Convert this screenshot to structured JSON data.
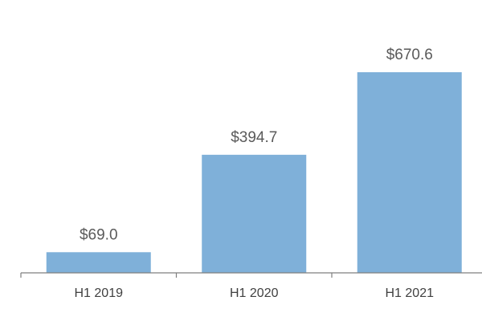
{
  "chart_data": {
    "type": "bar",
    "title": "",
    "xlabel": "",
    "ylabel": "",
    "categories": [
      "H1 2019",
      "H1 2020",
      "H1 2021"
    ],
    "values": [
      69.0,
      394.7,
      670.6
    ],
    "data_labels": [
      "$69.0",
      "$394.7",
      "$670.6"
    ],
    "ylim": [
      0,
      700
    ],
    "grid": false,
    "legend": "none",
    "bar_color": "#7fb0d9"
  }
}
